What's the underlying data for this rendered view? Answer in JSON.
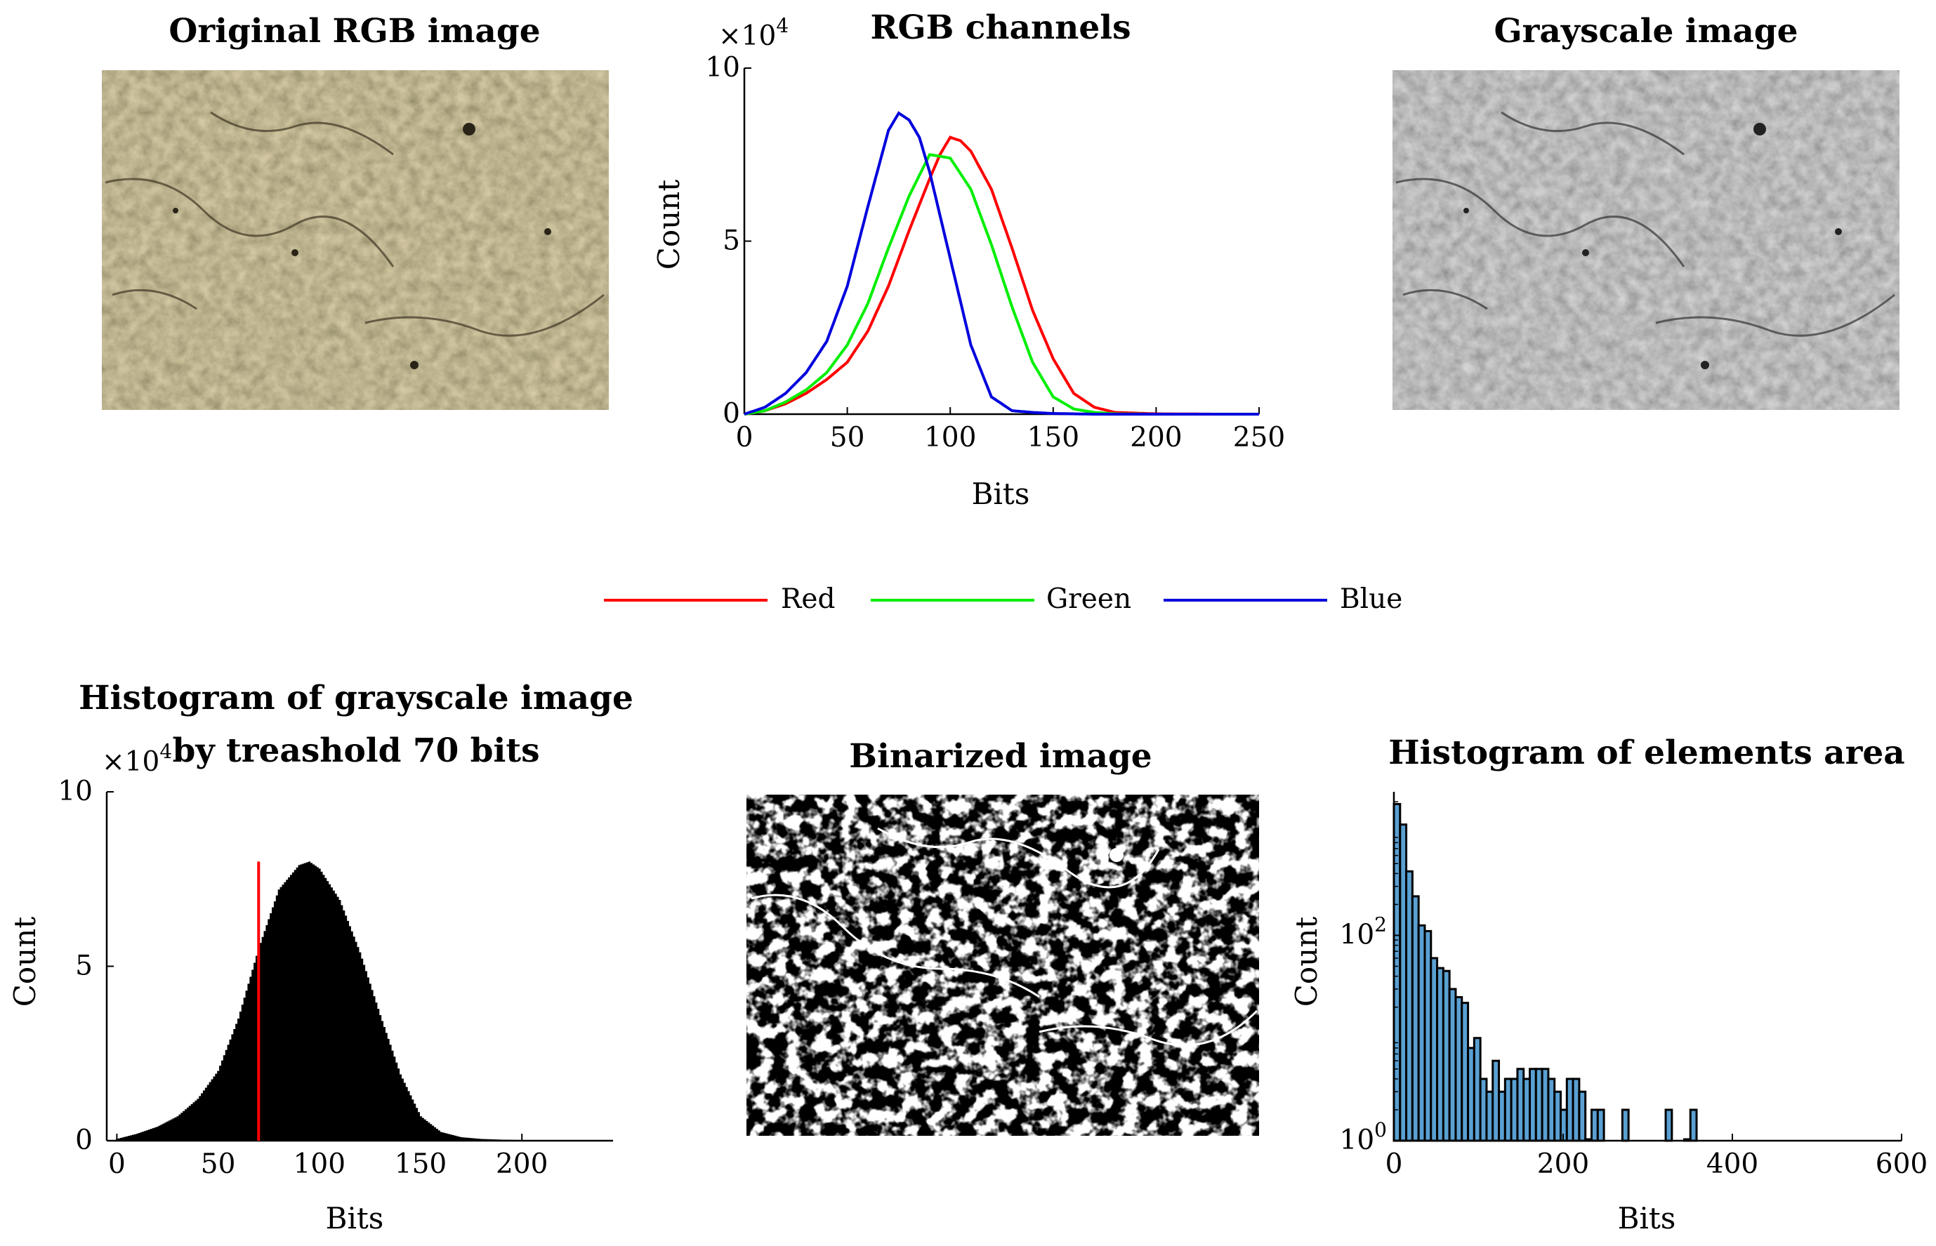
{
  "chart_data": [
    {
      "id": "original",
      "type": "image",
      "title": "Original RGB image",
      "colors": {
        "base": "#8e7f55",
        "dark": "#3f3624",
        "light": "#c8bb8e"
      }
    },
    {
      "id": "rgb",
      "type": "line",
      "title": "RGB channels",
      "xlabel": "Bits",
      "ylabel": "Count",
      "exponent": "×10",
      "exponent_power": "4",
      "xlim": [
        0,
        250
      ],
      "ylim": [
        0,
        10
      ],
      "xticks": [
        "0",
        "50",
        "100",
        "150",
        "200",
        "250"
      ],
      "yticks": [
        "0",
        "5",
        "10"
      ],
      "series": [
        {
          "name": "Red",
          "color": "#ff0000",
          "x": [
            0,
            10,
            20,
            30,
            40,
            50,
            60,
            70,
            80,
            90,
            95,
            100,
            105,
            110,
            120,
            130,
            140,
            150,
            160,
            170,
            180,
            200,
            230,
            250
          ],
          "y": [
            0,
            0.1,
            0.3,
            0.6,
            1.0,
            1.5,
            2.4,
            3.7,
            5.3,
            6.8,
            7.5,
            8.0,
            7.9,
            7.6,
            6.5,
            4.8,
            3.0,
            1.6,
            0.6,
            0.2,
            0.05,
            0.01,
            0.0,
            0.0
          ]
        },
        {
          "name": "Green",
          "color": "#00ee00",
          "x": [
            0,
            10,
            20,
            30,
            40,
            50,
            60,
            70,
            80,
            90,
            100,
            110,
            120,
            130,
            140,
            150,
            160,
            170,
            180,
            200,
            250
          ],
          "y": [
            0,
            0.1,
            0.35,
            0.7,
            1.2,
            2.0,
            3.2,
            4.8,
            6.3,
            7.5,
            7.4,
            6.5,
            4.9,
            3.1,
            1.5,
            0.5,
            0.15,
            0.05,
            0.01,
            0.0,
            0.0
          ]
        },
        {
          "name": "Blue",
          "color": "#0000dd",
          "x": [
            0,
            10,
            20,
            30,
            40,
            50,
            60,
            70,
            75,
            80,
            85,
            90,
            100,
            110,
            120,
            130,
            140,
            150,
            170,
            200,
            250
          ],
          "y": [
            0,
            0.2,
            0.6,
            1.2,
            2.1,
            3.7,
            6.0,
            8.2,
            8.7,
            8.5,
            8.0,
            7.0,
            4.5,
            2.0,
            0.5,
            0.1,
            0.05,
            0.02,
            0.0,
            0.0,
            0.0
          ]
        }
      ],
      "legend": [
        "Red",
        "Green",
        "Blue"
      ],
      "legend_position": "below"
    },
    {
      "id": "gray",
      "type": "image",
      "title": "Grayscale image",
      "colors": {
        "base": "#8a8a8a",
        "dark": "#3a3a3a",
        "light": "#c4c4c4"
      }
    },
    {
      "id": "hist_gray",
      "type": "bar",
      "title": "Histogram of grayscale image",
      "subtitle": "by treashold 70 bits",
      "xlabel": "Bits",
      "ylabel": "Count",
      "exponent": "×10",
      "exponent_power": "4",
      "xlim": [
        -5,
        245
      ],
      "ylim": [
        0,
        10
      ],
      "xticks": [
        "0",
        "50",
        "100",
        "150",
        "200"
      ],
      "yticks": [
        "0",
        "5",
        "10"
      ],
      "threshold": 70,
      "threshold_top": 8.0,
      "threshold_color": "#ff0000",
      "bar_color": "#000000",
      "x": [
        0,
        10,
        20,
        30,
        40,
        50,
        60,
        70,
        80,
        90,
        95,
        100,
        110,
        120,
        130,
        140,
        150,
        160,
        170,
        180,
        190,
        200,
        210,
        220,
        230,
        240
      ],
      "y": [
        0.05,
        0.2,
        0.4,
        0.7,
        1.2,
        2.0,
        3.5,
        5.5,
        7.2,
        7.9,
        8.0,
        7.8,
        6.9,
        5.4,
        3.6,
        1.9,
        0.7,
        0.25,
        0.1,
        0.05,
        0.03,
        0.02,
        0.01,
        0.01,
        0.0,
        0.0
      ]
    },
    {
      "id": "binarized",
      "type": "image",
      "title": "Binarized image",
      "colors": {
        "bg": "#000000",
        "fg": "#ffffff"
      }
    },
    {
      "id": "hist_area",
      "type": "bar",
      "title": "Histogram of elements area",
      "xlabel": "Bits",
      "ylabel": "Count",
      "yscale": "log",
      "xlim": [
        0,
        600
      ],
      "ylim": [
        1,
        2500
      ],
      "xticks": [
        "0",
        "200",
        "400",
        "600"
      ],
      "yticks": [
        {
          "base": "10",
          "power": "0",
          "value": 1
        },
        {
          "base": "10",
          "power": "2",
          "value": 100
        }
      ],
      "bar_color": "#5aa0d2",
      "bin_width": 7.3,
      "x": [
        0,
        7.3,
        14.6,
        21.9,
        29.2,
        36.5,
        43.8,
        51.1,
        58.4,
        65.7,
        73,
        80.3,
        87.6,
        94.9,
        102.2,
        109.5,
        116.8,
        124.1,
        131.4,
        138.7,
        146,
        153.3,
        160.6,
        167.9,
        175.2,
        182.5,
        189.8,
        197.1,
        204.4,
        211.7,
        219,
        226.3,
        233.6,
        240.9,
        270,
        321.2,
        343.1,
        350.4
      ],
      "y": [
        1900,
        1200,
        420,
        240,
        125,
        110,
        60,
        48,
        45,
        30,
        25,
        22,
        8,
        10,
        4,
        3,
        6,
        3,
        4,
        4,
        5,
        4,
        5,
        5,
        5,
        4,
        3,
        2,
        4,
        4,
        3,
        1,
        2,
        2,
        2,
        2,
        1,
        2
      ]
    }
  ]
}
